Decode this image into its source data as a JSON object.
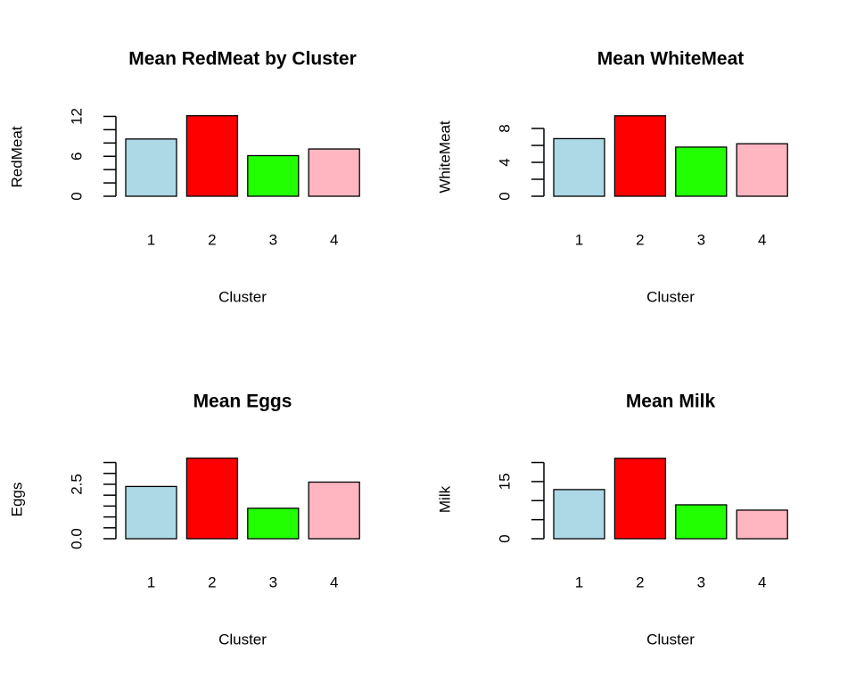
{
  "chart_data": [
    {
      "type": "bar",
      "title": "Mean RedMeat by Cluster",
      "xlabel": "Cluster",
      "ylabel": "RedMeat",
      "categories": [
        "1",
        "2",
        "3",
        "4"
      ],
      "values": [
        8.6,
        12.1,
        6.1,
        7.1
      ],
      "colors": [
        "#add8e6",
        "#ff0000",
        "#22ff00",
        "#ffb6c1"
      ],
      "ylim": [
        0,
        12.6
      ],
      "yticks": [
        0,
        6,
        12
      ],
      "yticks_minor": [
        2,
        4,
        8,
        10
      ]
    },
    {
      "type": "bar",
      "title": "Mean WhiteMeat",
      "xlabel": "Cluster",
      "ylabel": "WhiteMeat",
      "categories": [
        "1",
        "2",
        "3",
        "4"
      ],
      "values": [
        6.8,
        9.5,
        5.8,
        6.2
      ],
      "colors": [
        "#add8e6",
        "#ff0000",
        "#22ff00",
        "#ffb6c1"
      ],
      "ylim": [
        0,
        9.9
      ],
      "yticks": [
        0,
        4,
        8
      ],
      "yticks_minor": [
        2,
        6
      ]
    },
    {
      "type": "bar",
      "title": "Mean Eggs",
      "xlabel": "Cluster",
      "ylabel": "Eggs",
      "categories": [
        "1",
        "2",
        "3",
        "4"
      ],
      "values": [
        2.4,
        3.7,
        1.4,
        2.6
      ],
      "colors": [
        "#add8e6",
        "#ff0000",
        "#22ff00",
        "#ffb6c1"
      ],
      "ylim": [
        0,
        3.85
      ],
      "yticks": [
        {
          "value": 0,
          "label": "0.0"
        },
        2.5
      ],
      "yticks_minor": [
        0.5,
        1,
        1.5,
        2,
        3,
        3.5
      ]
    },
    {
      "type": "bar",
      "title": "Mean Milk",
      "xlabel": "Cluster",
      "ylabel": "Milk",
      "categories": [
        "1",
        "2",
        "3",
        "4"
      ],
      "values": [
        12.9,
        21.1,
        8.9,
        7.5
      ],
      "colors": [
        "#add8e6",
        "#ff0000",
        "#22ff00",
        "#ffb6c1"
      ],
      "ylim": [
        0,
        22
      ],
      "yticks": [
        0,
        15
      ],
      "yticks_minor": [
        5,
        10,
        20
      ]
    }
  ]
}
